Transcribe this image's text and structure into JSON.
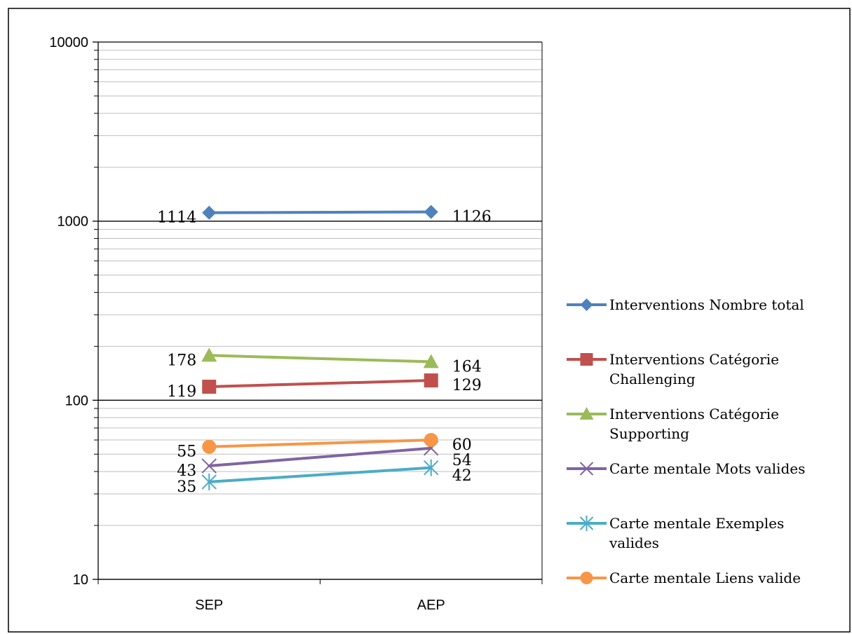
{
  "chart_data": {
    "type": "line",
    "y_scale": "log",
    "ylim": [
      10,
      10000
    ],
    "y_ticks": [
      "10",
      "100",
      "1000",
      "10000"
    ],
    "categories": [
      "SEP",
      "AEP"
    ],
    "grid": "horizontal, major and minor",
    "legend_position": "right",
    "series": [
      {
        "name": "Interventions Nombre total",
        "values": [
          1114,
          1126
        ],
        "labels": [
          "1114",
          "1126"
        ],
        "color": "#4f81bd",
        "marker": "diamond"
      },
      {
        "name": "Interventions Catégorie Challenging",
        "values": [
          119,
          129
        ],
        "labels": [
          "119",
          "129"
        ],
        "color": "#c0504d",
        "marker": "square"
      },
      {
        "name": "Interventions Catégorie Supporting",
        "values": [
          178,
          164
        ],
        "labels": [
          "178",
          "164"
        ],
        "color": "#9bbb59",
        "marker": "triangle"
      },
      {
        "name": "Carte mentale Mots valides",
        "values": [
          43,
          54
        ],
        "labels": [
          "43",
          "54"
        ],
        "color": "#8064a2",
        "marker": "x"
      },
      {
        "name": "Carte mentale Exemples valides",
        "values": [
          35,
          42
        ],
        "labels": [
          "35",
          "42"
        ],
        "color": "#4bacc6",
        "marker": "star"
      },
      {
        "name": "Carte mentale Liens valide",
        "values": [
          55,
          60
        ],
        "labels": [
          "55",
          "60"
        ],
        "color": "#f79646",
        "marker": "circle"
      }
    ]
  }
}
